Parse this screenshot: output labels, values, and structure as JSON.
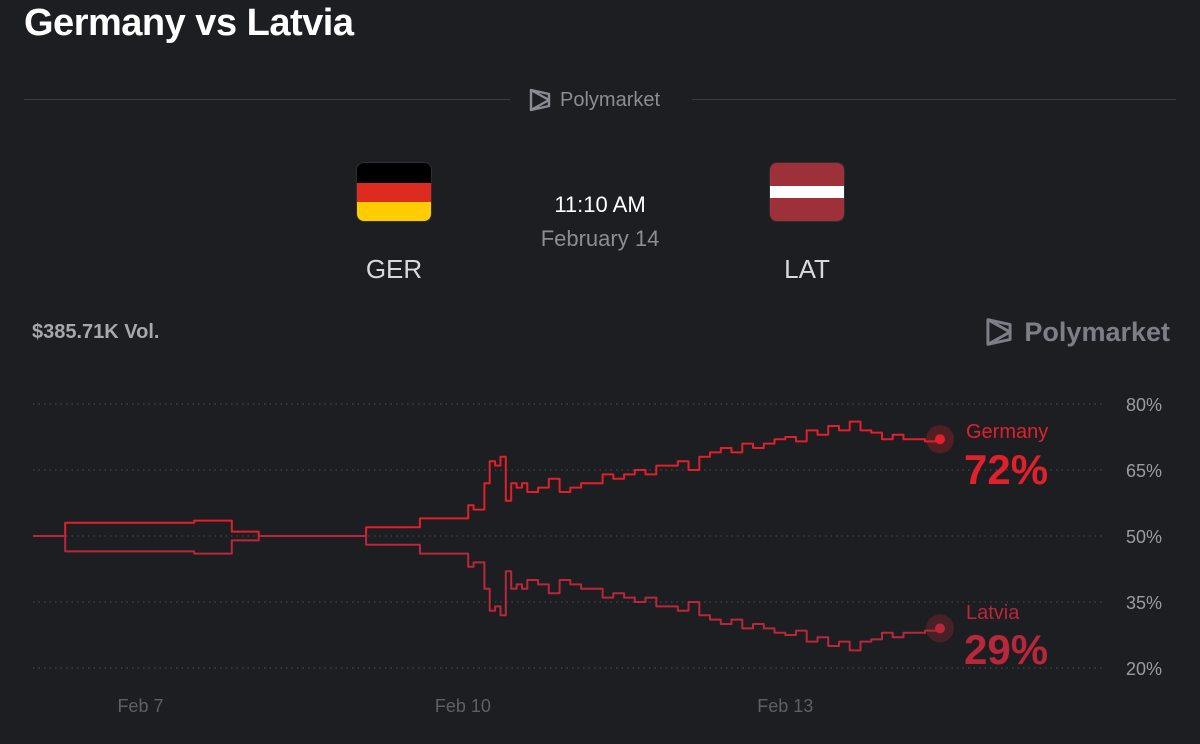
{
  "header": {
    "title": "Germany vs Latvia"
  },
  "brand": {
    "name": "Polymarket",
    "icon": "polymarket-logo-icon"
  },
  "match": {
    "home": {
      "code": "GER",
      "flag_colors": [
        "#000000",
        "#dd2c1f",
        "#ffcc00"
      ]
    },
    "away": {
      "code": "LAT",
      "flag_colors": [
        "#9e3039",
        "#ffffff",
        "#9e3039"
      ]
    },
    "time": "11:10 AM",
    "date": "February 14"
  },
  "market": {
    "volume": "$385.71K Vol."
  },
  "chart_data": {
    "type": "line",
    "x_labels": [
      "Feb 7",
      "Feb 10",
      "Feb 13"
    ],
    "x_label_positions_days": [
      1.0,
      4.0,
      7.0
    ],
    "xlim_days": [
      0,
      8.5
    ],
    "ylim": [
      20,
      80
    ],
    "y_ticks": [
      80,
      65,
      50,
      35,
      20
    ],
    "y_tick_labels": [
      "80%",
      "65%",
      "50%",
      "35%",
      "20%"
    ],
    "grid": true,
    "series": [
      {
        "name": "Germany",
        "color": "#e0202a",
        "label_value": "72%",
        "x": [
          0.0,
          0.2,
          0.3,
          0.6,
          1.5,
          1.7,
          1.85,
          2.0,
          2.1,
          2.2,
          3.0,
          3.1,
          3.5,
          3.6,
          3.95,
          4.05,
          4.1,
          4.2,
          4.25,
          4.3,
          4.35,
          4.4,
          4.45,
          4.5,
          4.55,
          4.6,
          4.7,
          4.8,
          4.9,
          5.0,
          5.1,
          5.3,
          5.4,
          5.5,
          5.6,
          5.7,
          5.8,
          5.9,
          6.0,
          6.1,
          6.2,
          6.3,
          6.4,
          6.5,
          6.6,
          6.7,
          6.8,
          6.9,
          7.0,
          7.1,
          7.2,
          7.3,
          7.4,
          7.5,
          7.6,
          7.7,
          7.8,
          7.9,
          8.0,
          8.1,
          8.2,
          8.3,
          8.44
        ],
        "y": [
          50,
          50,
          53,
          53,
          53.5,
          53.5,
          51,
          51,
          50,
          50,
          50,
          52,
          52,
          54,
          54,
          57,
          56,
          62,
          67,
          66,
          68,
          58,
          62,
          61,
          62,
          60,
          61,
          63,
          60,
          61,
          62,
          64,
          63,
          64,
          65,
          64,
          66,
          66,
          67,
          65,
          68,
          69,
          70,
          69,
          71,
          70,
          71,
          72,
          72.5,
          71.5,
          74,
          73,
          75,
          74,
          76,
          74,
          73.5,
          72,
          73,
          72,
          72,
          71.5,
          72
        ]
      },
      {
        "name": "Latvia",
        "color": "#b8273a",
        "label_value": "29%",
        "x": [
          0.0,
          0.2,
          0.3,
          0.6,
          1.5,
          1.7,
          1.85,
          2.0,
          2.1,
          2.2,
          3.0,
          3.1,
          3.5,
          3.6,
          3.95,
          4.05,
          4.1,
          4.2,
          4.25,
          4.3,
          4.35,
          4.4,
          4.45,
          4.5,
          4.55,
          4.6,
          4.7,
          4.8,
          4.9,
          5.0,
          5.1,
          5.3,
          5.4,
          5.5,
          5.6,
          5.7,
          5.8,
          5.9,
          6.0,
          6.1,
          6.2,
          6.3,
          6.4,
          6.5,
          6.6,
          6.7,
          6.8,
          6.9,
          7.0,
          7.1,
          7.2,
          7.3,
          7.4,
          7.5,
          7.6,
          7.7,
          7.8,
          7.9,
          8.0,
          8.1,
          8.2,
          8.3,
          8.44
        ],
        "y": [
          50,
          50,
          46.5,
          46.5,
          46,
          46,
          49,
          49,
          50,
          50,
          50,
          48,
          48,
          46,
          46,
          43,
          44,
          38,
          33,
          34,
          32,
          42,
          38,
          39,
          38,
          40,
          39,
          37,
          40,
          39,
          38,
          36,
          37,
          36,
          35,
          36,
          34,
          34,
          33,
          35,
          32,
          31,
          30,
          31,
          29,
          30,
          29,
          28,
          27.5,
          28.5,
          26,
          27,
          25,
          26,
          24,
          26,
          26.5,
          28,
          27,
          28,
          28,
          28.5,
          29
        ]
      }
    ]
  }
}
